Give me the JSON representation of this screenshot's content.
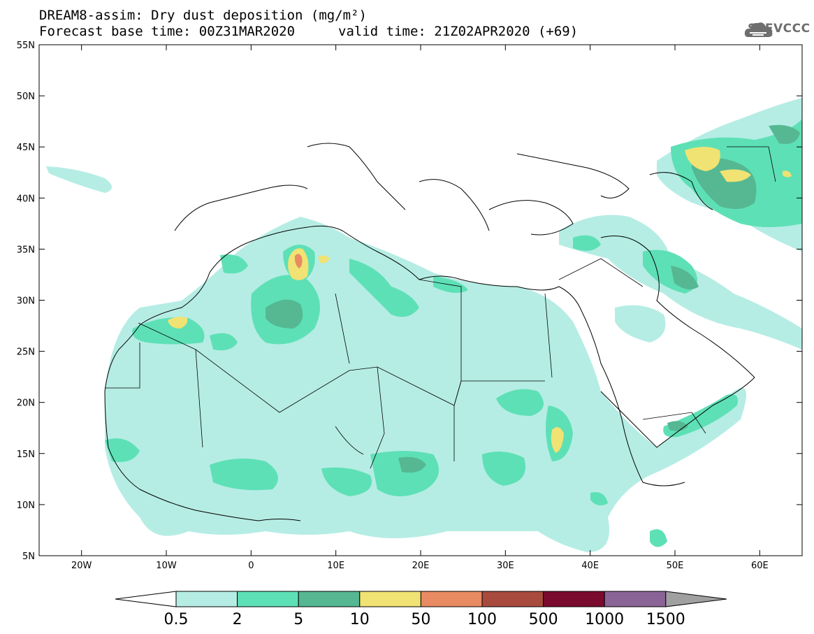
{
  "header": {
    "title_line1": "DREAM8-assim: Dry dust deposition (mg/m²)",
    "title_line2": "Forecast base time: 00Z31MAR2020",
    "valid_time": "valid time: 21Z02APR2020 (+69)",
    "logo_text": "SEEVCCC",
    "logo_icon": "cloud-icon"
  },
  "map": {
    "lon_range": [
      -25,
      65
    ],
    "lat_range": [
      5,
      55
    ],
    "lon_ticks": [
      "20W",
      "10W",
      "0",
      "10E",
      "20E",
      "30E",
      "40E",
      "50E",
      "60E"
    ],
    "lat_ticks": [
      "55N",
      "50N",
      "45N",
      "40N",
      "35N",
      "30N",
      "25N",
      "20N",
      "15N",
      "10N",
      "5N"
    ],
    "background": "#ffffff"
  },
  "colorbar": {
    "labels": [
      "0.5",
      "2",
      "5",
      "10",
      "50",
      "100",
      "500",
      "1000",
      "1500"
    ],
    "low_color": "#ffffff",
    "high_color": "#a0a0a0",
    "colors": [
      "#b5ede4",
      "#5ee0b6",
      "#55b892",
      "#f0e273",
      "#e88a62",
      "#a84a3e",
      "#7a0a2e",
      "#8a6496"
    ]
  }
}
